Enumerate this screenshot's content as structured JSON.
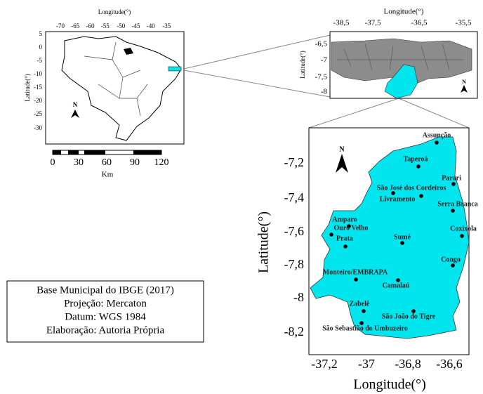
{
  "brazil_map": {
    "x_label": "Longitude(°)",
    "y_label": "Latitude(°)",
    "x_ticks": [
      "-70",
      "-65",
      "-60",
      "-55",
      "-50",
      "-45",
      "-40",
      "-35"
    ],
    "y_ticks": [
      "5",
      "0",
      "-5",
      "-10",
      "-15",
      "-20",
      "-25",
      "-30"
    ],
    "north_label": "N",
    "scale_bar": {
      "ticks": [
        "0",
        "30",
        "60",
        "90",
        "120"
      ],
      "unit": "Km"
    }
  },
  "paraiba_map": {
    "x_label": "Longitude(°)",
    "y_label": "Latitude(°)",
    "x_ticks": [
      "-38,5",
      "-37,5",
      "-36,5",
      "-35,5"
    ],
    "y_ticks": [
      "-6,5",
      "-7",
      "-7,5",
      "-8"
    ],
    "north_label": "N"
  },
  "study_area_map": {
    "x_label": "Longitude(°)",
    "y_label": "Latitude(°)",
    "x_ticks": [
      "-37,2",
      "-37",
      "-36,8",
      "-36,6"
    ],
    "y_ticks": [
      "-7,2",
      "-7,4",
      "-7,6",
      "-7,8",
      "-8",
      "-8,2"
    ],
    "north_label": "N",
    "stations": [
      "Assunção",
      "Taperoá",
      "Parari",
      "São José dos Cordeiros",
      "Livramento",
      "Serra Branca",
      "Amparo",
      "Ouro Velho",
      "Coxixola",
      "Prata",
      "Sumé",
      "Congo",
      "Monteiro/EMBRAPA",
      "Camalaú",
      "Zabelê",
      "São João do Tigre",
      "São Sebastião do Umbuzeiro"
    ]
  },
  "credits": [
    "Base Municipal do IBGE (2017)",
    "Projeção: Mercaton",
    "Datum: WGS 1984",
    "Elaboração: Autoria Própria"
  ]
}
